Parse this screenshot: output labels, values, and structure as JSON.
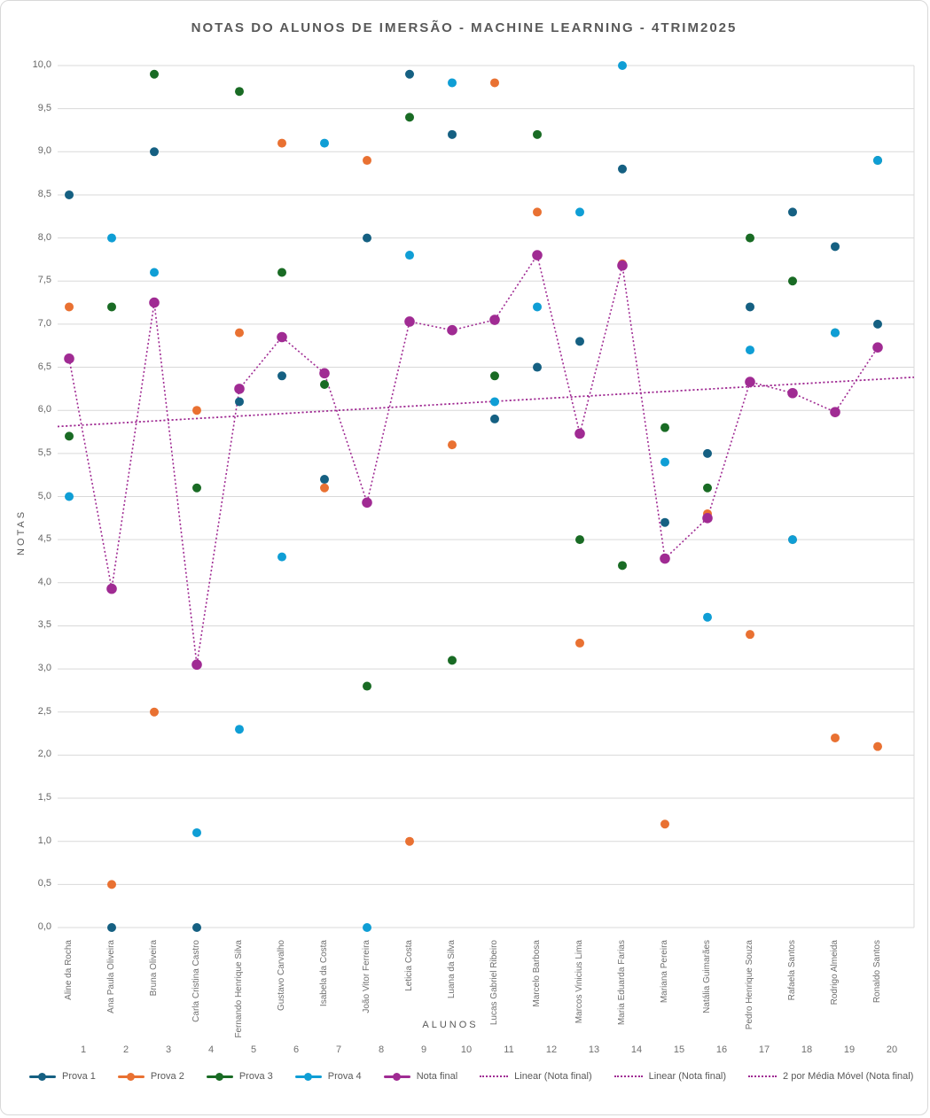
{
  "title": "NOTAS DO ALUNOS DE IMERSÃO - MACHINE LEARNING - 4TRIM2025",
  "axes": {
    "y_label": "NOTAS",
    "x_label": "ALUNOS",
    "y_ticks": [
      "10,0",
      "9,5",
      "9,0",
      "8,5",
      "8,0",
      "7,5",
      "7,0",
      "6,5",
      "6,0",
      "5,5",
      "5,0",
      "4,5",
      "4,0",
      "3,5",
      "3,0",
      "2,5",
      "2,0",
      "1,5",
      "1,0",
      "0,5",
      "0,0"
    ],
    "x_numbers": [
      "1",
      "2",
      "3",
      "4",
      "5",
      "6",
      "7",
      "8",
      "9",
      "10",
      "11",
      "12",
      "13",
      "14",
      "15",
      "16",
      "17",
      "18",
      "19",
      "20"
    ]
  },
  "legend": {
    "items": [
      {
        "label": "Prova 1",
        "color": "#156082",
        "marker": "line-dot"
      },
      {
        "label": "Prova 2",
        "color": "#E97132",
        "marker": "line-dot"
      },
      {
        "label": "Prova 3",
        "color": "#196B24",
        "marker": "line-dot"
      },
      {
        "label": "Prova 4",
        "color": "#0F9ED5",
        "marker": "line-dot"
      },
      {
        "label": "Nota final",
        "color": "#A02B93",
        "marker": "line-dot"
      },
      {
        "label": "Linear (Nota final)",
        "color": "#A02B93",
        "marker": "dotted"
      },
      {
        "label": "Linear (Nota final)",
        "color": "#A02B93",
        "marker": "dotted"
      },
      {
        "label": "2 por Média Móvel (Nota final)",
        "color": "#A02B93",
        "marker": "dotted"
      }
    ]
  },
  "chart_data": {
    "type": "scatter",
    "title": "NOTAS DO ALUNOS DE IMERSÃO - MACHINE LEARNING - 4TRIM2025",
    "xlabel": "ALUNOS",
    "ylabel": "NOTAS",
    "ylim": [
      0,
      10
    ],
    "y_tick_step": 0.5,
    "grid": true,
    "legend_position": "bottom",
    "decimal_separator": ",",
    "categories": [
      "Aline da Rocha",
      "Ana Paula Oliveira",
      "Bruna Oliveira",
      "Carla Cristina Castro",
      "Fernando Henrique Silva",
      "Gustavo Carvalho",
      "Isabela da Costa",
      "João Vitor Ferreira",
      "Leticia Costa",
      "Luana da Silva",
      "Lucas Gabriel Ribeiro",
      "Marcelo Barbosa",
      "Marcos Vinicius Lima",
      "Maria Eduarda Farias",
      "Mariana Pereira",
      "Natália Guimarães",
      "Pedro Henrique Souza",
      "Rafaela Santos",
      "Rodrigo Almeida",
      "Ronaldo Santos"
    ],
    "series": [
      {
        "name": "Prova 1",
        "color": "#156082",
        "values": [
          8.5,
          0.0,
          9.0,
          0.0,
          6.1,
          6.4,
          5.2,
          8.0,
          9.9,
          9.2,
          5.9,
          6.5,
          6.8,
          8.8,
          4.7,
          5.5,
          7.2,
          8.3,
          7.9,
          7.0
        ]
      },
      {
        "name": "Prova 2",
        "color": "#E97132",
        "values": [
          7.2,
          0.5,
          2.5,
          6.0,
          6.9,
          9.1,
          5.1,
          8.9,
          1.0,
          5.6,
          9.8,
          8.3,
          3.3,
          7.7,
          1.2,
          4.8,
          3.4,
          4.5,
          2.2,
          2.1
        ]
      },
      {
        "name": "Prova 3",
        "color": "#196B24",
        "values": [
          5.7,
          7.2,
          9.9,
          5.1,
          9.7,
          7.6,
          6.3,
          2.8,
          9.4,
          3.1,
          6.4,
          9.2,
          4.5,
          4.2,
          5.8,
          5.1,
          8.0,
          7.5,
          6.9,
          8.9
        ]
      },
      {
        "name": "Prova 4",
        "color": "#0F9ED5",
        "values": [
          5.0,
          8.0,
          7.6,
          1.1,
          2.3,
          4.3,
          9.1,
          0.0,
          7.8,
          9.8,
          6.1,
          7.2,
          8.3,
          10.0,
          5.4,
          3.6,
          6.7,
          4.5,
          6.9,
          8.9
        ]
      },
      {
        "name": "Nota final",
        "color": "#A02B93",
        "values": [
          6.6,
          3.93,
          7.25,
          3.05,
          6.25,
          6.85,
          6.43,
          4.93,
          7.03,
          6.93,
          7.05,
          7.8,
          5.73,
          7.68,
          4.28,
          4.75,
          6.33,
          6.2,
          5.98,
          6.73
        ]
      }
    ],
    "trendlines": [
      {
        "name": "Linear (Nota final)",
        "color": "#A02B93",
        "y_start": 5.82,
        "y_end": 6.36
      },
      {
        "name": "Linear (Nota final)",
        "color": "#A02B93",
        "y_start": 5.82,
        "y_end": 6.36
      }
    ],
    "moving_average": {
      "name": "2 por Média Móvel (Nota final)",
      "color": "#A02B93",
      "period": 2,
      "follows": "Nota final"
    }
  }
}
